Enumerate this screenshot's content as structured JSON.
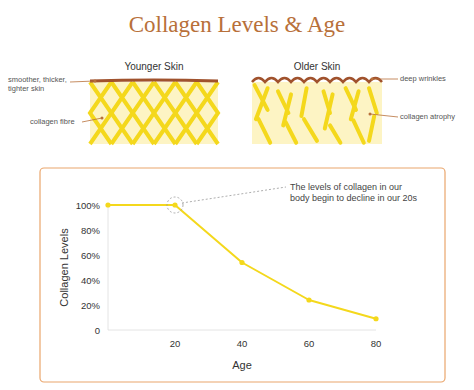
{
  "chart_data": {
    "type": "line",
    "title": "Collagen Levels & Age",
    "x": [
      0,
      20,
      40,
      60,
      80
    ],
    "values": [
      100,
      100,
      54,
      24,
      9
    ],
    "color": "#f4d81c",
    "marker": "circle",
    "line_style": "solid",
    "xlim": [
      0,
      80
    ],
    "ylim": [
      0,
      100
    ],
    "xticks": [
      20,
      40,
      60,
      80
    ],
    "yticks": [
      0,
      {
        "value": 20,
        "label": "20%"
      },
      {
        "value": 40,
        "label": "40%"
      },
      {
        "value": 60,
        "label": "60%"
      },
      {
        "value": 80,
        "label": "80%"
      },
      {
        "value": 100,
        "label": "100%"
      }
    ],
    "x_label": "Age",
    "y_label": "Collagen Levels",
    "grid": false,
    "annotations": [
      {
        "lines": [
          "The levels of collagen in our",
          "body begin to decline in our 20s"
        ],
        "x": 20,
        "y": 100
      }
    ]
  },
  "illustration": {
    "panels": [
      "Younger Skin",
      "Older Skin"
    ],
    "callouts": [
      {
        "lines": [
          "smoother, thicker,",
          "tighter skin"
        ]
      },
      {
        "lines": [
          "collagen fibre"
        ]
      },
      {
        "lines": [
          "deep wrinkles"
        ]
      },
      {
        "lines": [
          "collagen atrophy"
        ]
      }
    ]
  }
}
